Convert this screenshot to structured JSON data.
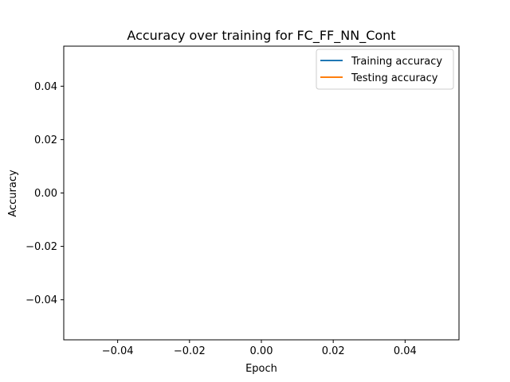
{
  "chart_data": {
    "type": "line",
    "title": "Accuracy over training for FC_FF_NN_Cont",
    "xlabel": "Epoch",
    "ylabel": "Accuracy",
    "xlim": [
      -0.055,
      0.055
    ],
    "ylim": [
      -0.055,
      0.055
    ],
    "x_ticks": [
      -0.04,
      -0.02,
      0.0,
      0.02,
      0.04
    ],
    "y_ticks": [
      -0.04,
      -0.02,
      0.0,
      0.02,
      0.04
    ],
    "x_tick_labels": [
      "−0.04",
      "−0.02",
      "0.00",
      "0.02",
      "0.04"
    ],
    "y_tick_labels": [
      "−0.04",
      "−0.02",
      "0.00",
      "0.02",
      "0.04"
    ],
    "grid": false,
    "legend_position": "top-right",
    "series": [
      {
        "name": "Training accuracy",
        "color": "#1f77b4",
        "x": [],
        "y": []
      },
      {
        "name": "Testing accuracy",
        "color": "#ff7f0e",
        "x": [],
        "y": []
      }
    ]
  }
}
